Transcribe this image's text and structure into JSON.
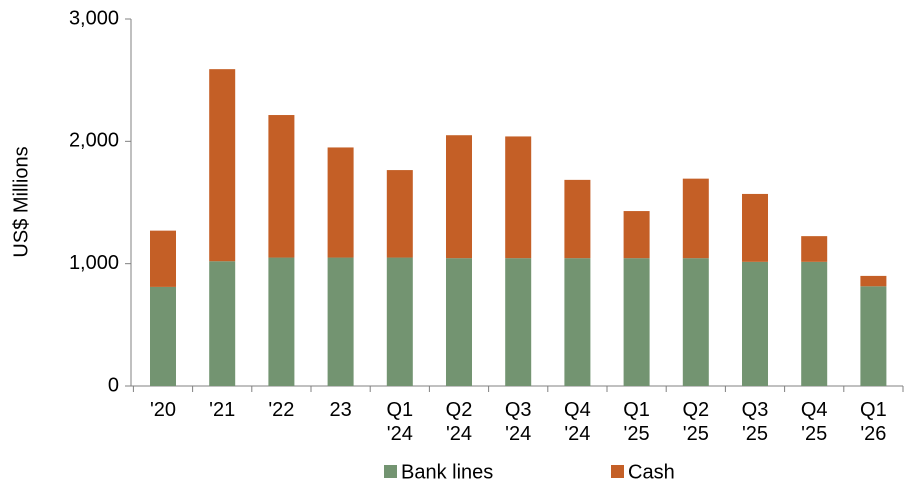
{
  "chart_data": {
    "type": "stacked_bar",
    "y_label": "US$ Millions",
    "categories": [
      "'20",
      "'21",
      "'22",
      "23",
      "Q1 '24",
      "Q2 '24",
      "Q3 '24",
      "Q4 '24",
      "Q1 '25",
      "Q2 '25",
      "Q3 '25",
      "Q4 '25",
      "Q1 '26"
    ],
    "series": [
      {
        "name": "Bank lines",
        "color": "#739471",
        "values": [
          810,
          1020,
          1050,
          1050,
          1050,
          1045,
          1045,
          1045,
          1045,
          1045,
          1015,
          1015,
          815
        ]
      },
      {
        "name": "Cash",
        "color": "#c45f26",
        "values": [
          460,
          1570,
          1165,
          900,
          715,
          1005,
          995,
          640,
          385,
          650,
          555,
          210,
          85
        ]
      }
    ],
    "ylim": [
      0,
      3000
    ],
    "yticks": [
      0,
      {
        "value": 1000,
        "label": "1,000"
      },
      {
        "value": 2000,
        "label": "2,000"
      },
      {
        "value": 3000,
        "label": "3,000"
      }
    ],
    "legend": "bottom"
  }
}
